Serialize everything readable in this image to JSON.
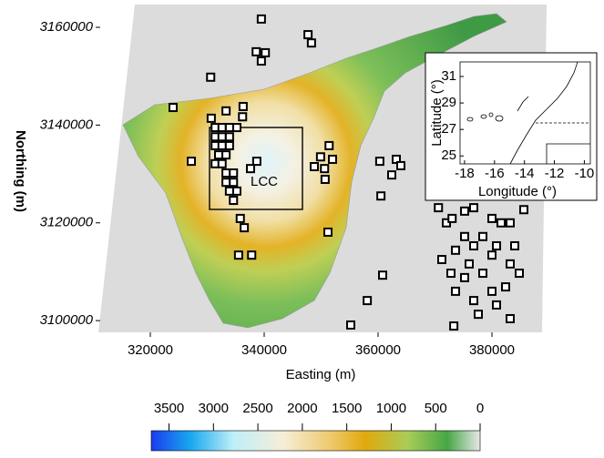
{
  "chart_data": [
    {
      "type": "scatter",
      "xlabel": "Easting (m)",
      "ylabel": "Northing (m)",
      "annotation": "LCC",
      "xlim": [
        311200,
        388800
      ],
      "ylim": [
        3097600,
        3164100
      ],
      "xticks": [
        320000,
        340000,
        360000,
        380000
      ],
      "yticks": [
        3100000,
        3120000,
        3140000,
        3160000
      ],
      "color": "#000000",
      "x": [
        339500,
        338600,
        340200,
        339500,
        347700,
        348300,
        330600,
        324000,
        333300,
        336300,
        336200,
        330700,
        331400,
        332600,
        333900,
        335200,
        331400,
        332600,
        333900,
        331400,
        332600,
        333900,
        332000,
        333300,
        331400,
        332600,
        333300,
        334600,
        333300,
        334600,
        333900,
        335200,
        334600,
        335800,
        336500,
        335500,
        337800,
        327200,
        338700,
        337600,
        351400,
        348800,
        350600,
        349900,
        352000,
        350700,
        360300,
        363200,
        364000,
        362400,
        360500,
        351200,
        360800,
        358100,
        355200,
        373300,
        370600,
        372000,
        373000,
        375200,
        376800,
        380000,
        381600,
        383200,
        385600,
        375200,
        376800,
        380000,
        373600,
        376000,
        378400,
        380800,
        383200,
        384800,
        382400,
        380000,
        376800,
        377600,
        375200,
        373600,
        383200,
        380800,
        371200,
        372800,
        378400,
        384000
      ],
      "y": [
        3161700,
        3155000,
        3154800,
        3153100,
        3158500,
        3156800,
        3149800,
        3143600,
        3142900,
        3143800,
        3141700,
        3141400,
        3139500,
        3139500,
        3139500,
        3139500,
        3137600,
        3137600,
        3137600,
        3135800,
        3135800,
        3135800,
        3133900,
        3133900,
        3132100,
        3132100,
        3130200,
        3130200,
        3128300,
        3128300,
        3126500,
        3126500,
        3124600,
        3120900,
        3119000,
        3113400,
        3113400,
        3132600,
        3132600,
        3131100,
        3135800,
        3131500,
        3131100,
        3133500,
        3133000,
        3128900,
        3132600,
        3133000,
        3131700,
        3129800,
        3125500,
        3118100,
        3109300,
        3104100,
        3099100,
        3098900,
        3123100,
        3120000,
        3120900,
        3122400,
        3123100,
        3120900,
        3120000,
        3120000,
        3122700,
        3117200,
        3115300,
        3113400,
        3114400,
        3111600,
        3109700,
        3115300,
        3111600,
        3109700,
        3106900,
        3106000,
        3104100,
        3101300,
        3108800,
        3106000,
        3100400,
        3103200,
        3112500,
        3109700,
        3117200,
        3115300
      ]
    },
    {
      "type": "colorbar",
      "xlim": [
        3700,
        0
      ],
      "xticks": [
        3500,
        3000,
        2500,
        2000,
        1500,
        1000,
        500,
        0
      ]
    },
    {
      "type": "inset",
      "xlabel": "Longitude (°)",
      "ylabel": "Latitude (°)",
      "xlim": [
        -18.3,
        -9.6
      ],
      "ylim": [
        24.4,
        32.1
      ],
      "xticks": [
        -18,
        -16,
        -14,
        -12,
        -10
      ],
      "yticks": [
        25,
        27,
        29,
        31
      ]
    }
  ]
}
